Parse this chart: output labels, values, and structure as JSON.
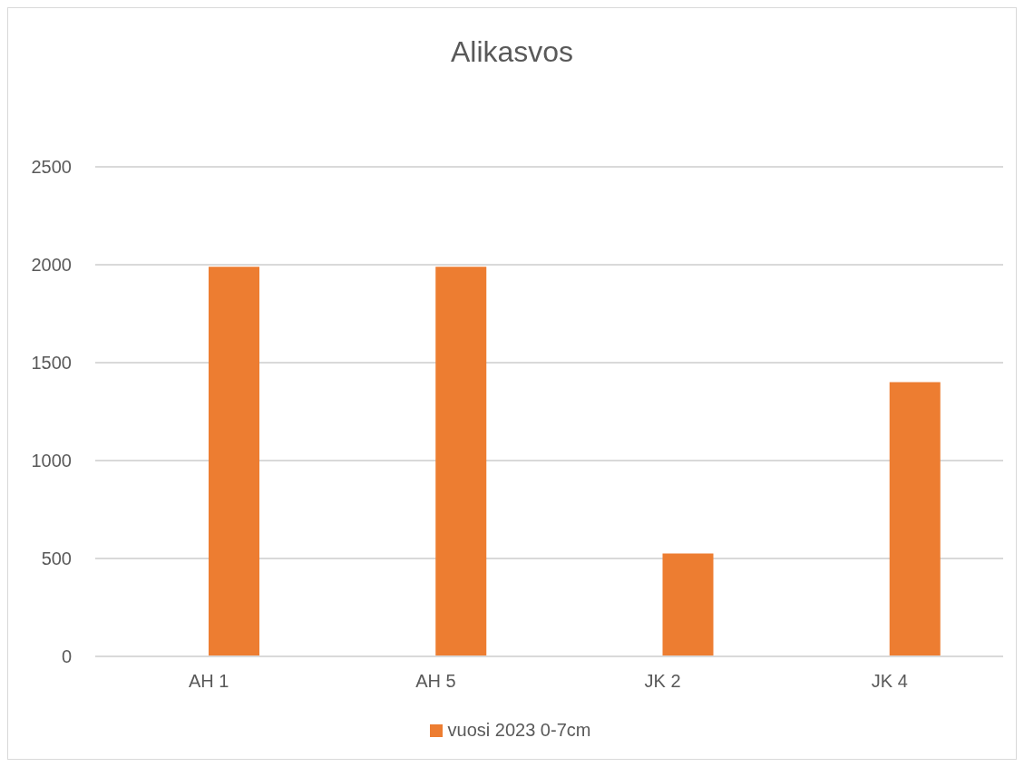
{
  "chart_data": {
    "type": "bar",
    "title": "Alikasvos",
    "categories": [
      "AH 1",
      "AH 5",
      "JK 2",
      "JK 4"
    ],
    "series": [
      {
        "color": "#4472c4",
        "values": [
          null,
          null,
          null,
          null
        ]
      },
      {
        "name": "vuosi 2023 0-7cm",
        "color": "#ed7d31",
        "values": [
          1990,
          1990,
          525,
          1400
        ]
      }
    ],
    "ylim": [
      0,
      2500
    ],
    "yticks": [
      0,
      500,
      1000,
      1500,
      2000,
      2500
    ],
    "grid": "y",
    "legend": "bottom"
  }
}
